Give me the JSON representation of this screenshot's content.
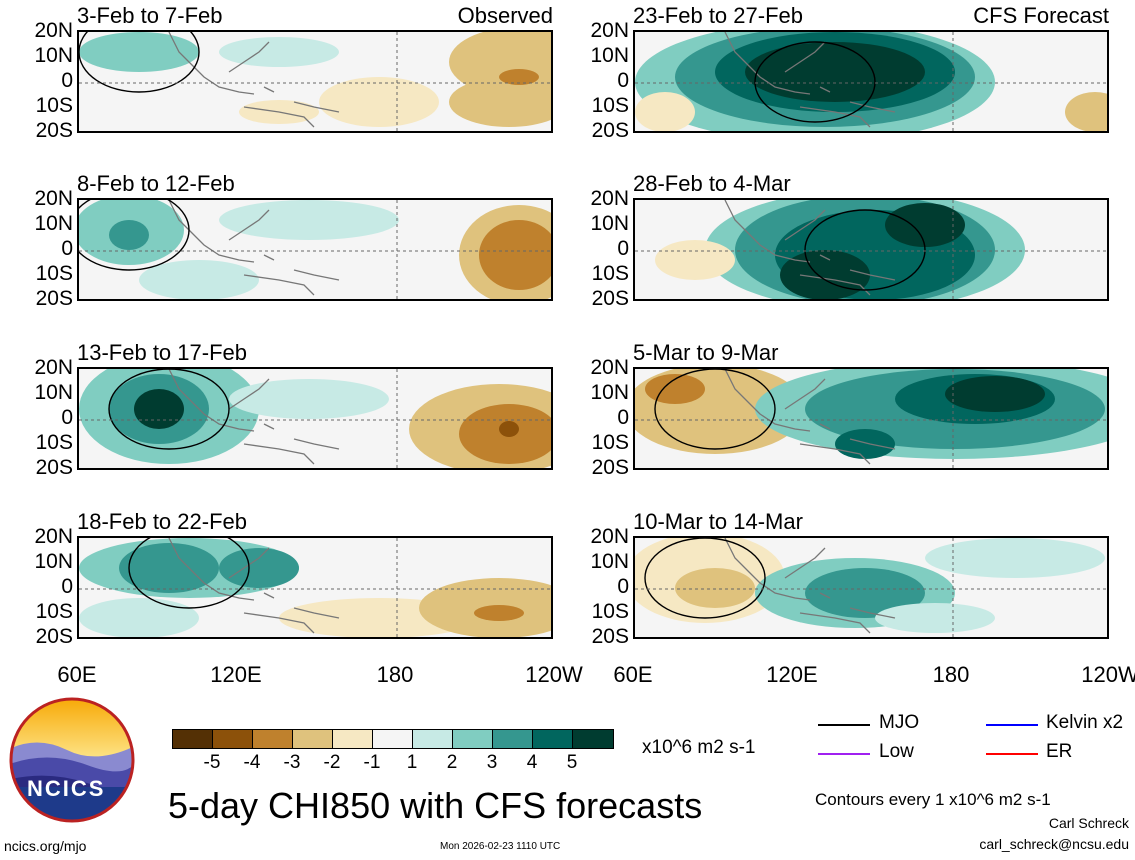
{
  "panels": [
    {
      "title": "3-Feb to 7-Feb",
      "tag": "Observed",
      "column": "left"
    },
    {
      "title": "8-Feb to 12-Feb",
      "tag": "",
      "column": "left"
    },
    {
      "title": "13-Feb to 17-Feb",
      "tag": "",
      "column": "left"
    },
    {
      "title": "18-Feb to 22-Feb",
      "tag": "",
      "column": "left"
    },
    {
      "title": "23-Feb to 27-Feb",
      "tag": "CFS Forecast",
      "column": "right"
    },
    {
      "title": "28-Feb to 4-Mar",
      "tag": "",
      "column": "right"
    },
    {
      "title": "5-Mar to 9-Mar",
      "tag": "",
      "column": "right"
    },
    {
      "title": "10-Mar to 14-Mar",
      "tag": "",
      "column": "right"
    }
  ],
  "lat_labels": [
    "20N",
    "10N",
    "0",
    "10S",
    "20S"
  ],
  "lon_labels": [
    "60E",
    "120E",
    "180",
    "120W"
  ],
  "colorbar": {
    "ticks": [
      "-5",
      "-4",
      "-3",
      "-2",
      "-1",
      "1",
      "2",
      "3",
      "4",
      "5"
    ],
    "colors": [
      "#543005",
      "#8c510a",
      "#bf812d",
      "#dfc27d",
      "#f6e8c3",
      "#f5f5f5",
      "#c7eae5",
      "#80cdc1",
      "#35978f",
      "#01665e",
      "#003c30"
    ],
    "units": "x10^6 m2 s-1"
  },
  "legend": [
    {
      "label": "MJO",
      "color": "#000000"
    },
    {
      "label": "Kelvin x2",
      "color": "#0000ff"
    },
    {
      "label": "Low",
      "color": "#a020f0"
    },
    {
      "label": "ER",
      "color": "#ff0000"
    }
  ],
  "contour_note": "Contours every 1 x10^6 m2 s-1",
  "main_title": "5-day CHI850 with CFS forecasts",
  "timestamp": "Mon 2026-02-23 1110 UTC",
  "author": "Carl Schreck",
  "email": "carl_schreck@ncsu.edu",
  "site": "ncics.org/mjo",
  "logo_text": "NCICS"
}
